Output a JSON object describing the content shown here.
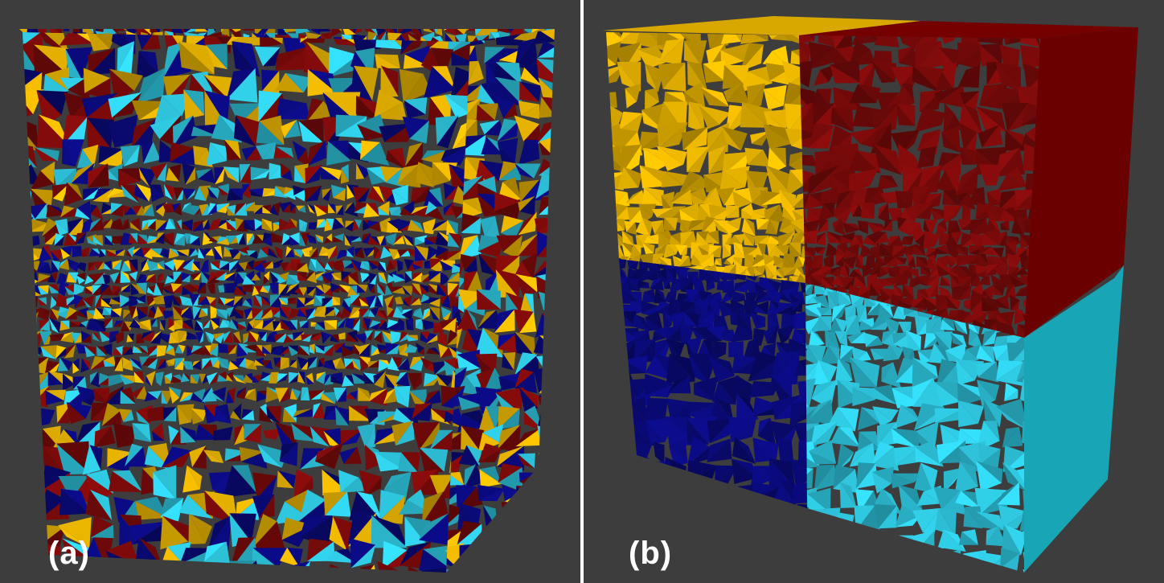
{
  "panels": [
    {
      "label": "(a)",
      "description_colors": [
        "#0a0a7a",
        "#7a0a0a",
        "#e3b000",
        "#2ec4dc"
      ]
    },
    {
      "label": "(b)",
      "description_colors": [
        "#e3b000",
        "#7a0a0a",
        "#0a0a7a",
        "#2ec4dc"
      ]
    }
  ],
  "colors": {
    "background": "#3d3d3d",
    "divider": "#ffffff",
    "navy": "#0a0a7a",
    "maroon": "#7a0a0a",
    "gold": "#e3b000",
    "cyan": "#2ec4dc"
  }
}
